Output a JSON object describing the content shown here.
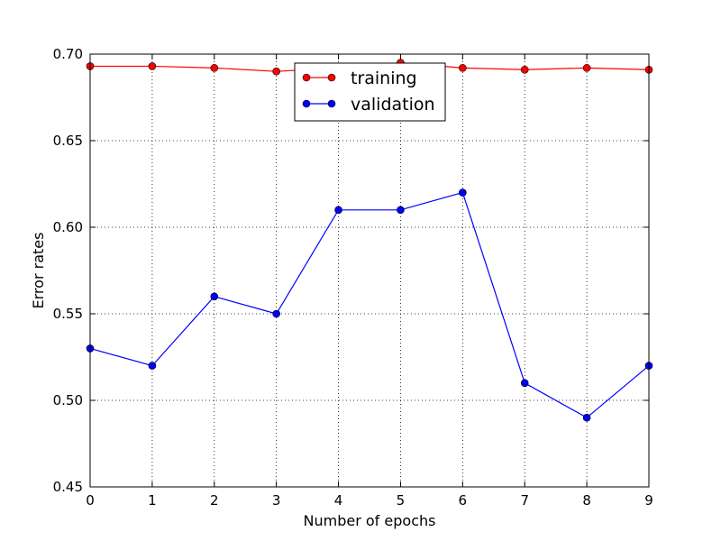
{
  "chart_data": {
    "type": "line",
    "xlabel": "Number of epochs",
    "ylabel": "Error rates",
    "xlim": [
      0,
      9
    ],
    "ylim": [
      0.45,
      0.7
    ],
    "grid": true,
    "legend_position": "top-center",
    "x": [
      0,
      1,
      2,
      3,
      4,
      5,
      6,
      7,
      8,
      9
    ],
    "x_ticks": [
      "0",
      "1",
      "2",
      "3",
      "4",
      "5",
      "6",
      "7",
      "8",
      "9"
    ],
    "y_ticks": [
      "0.45",
      "0.50",
      "0.55",
      "0.60",
      "0.65",
      "0.70"
    ],
    "y_tick_values": [
      0.45,
      0.5,
      0.55,
      0.6,
      0.65,
      0.7
    ],
    "series": [
      {
        "name": "training",
        "color": "#ff0000",
        "values": [
          0.693,
          0.693,
          0.692,
          0.69,
          0.692,
          0.695,
          0.692,
          0.691,
          0.692,
          0.691
        ]
      },
      {
        "name": "validation",
        "color": "#0000ff",
        "values": [
          0.53,
          0.52,
          0.56,
          0.55,
          0.61,
          0.61,
          0.62,
          0.51,
          0.49,
          0.52
        ]
      }
    ]
  }
}
